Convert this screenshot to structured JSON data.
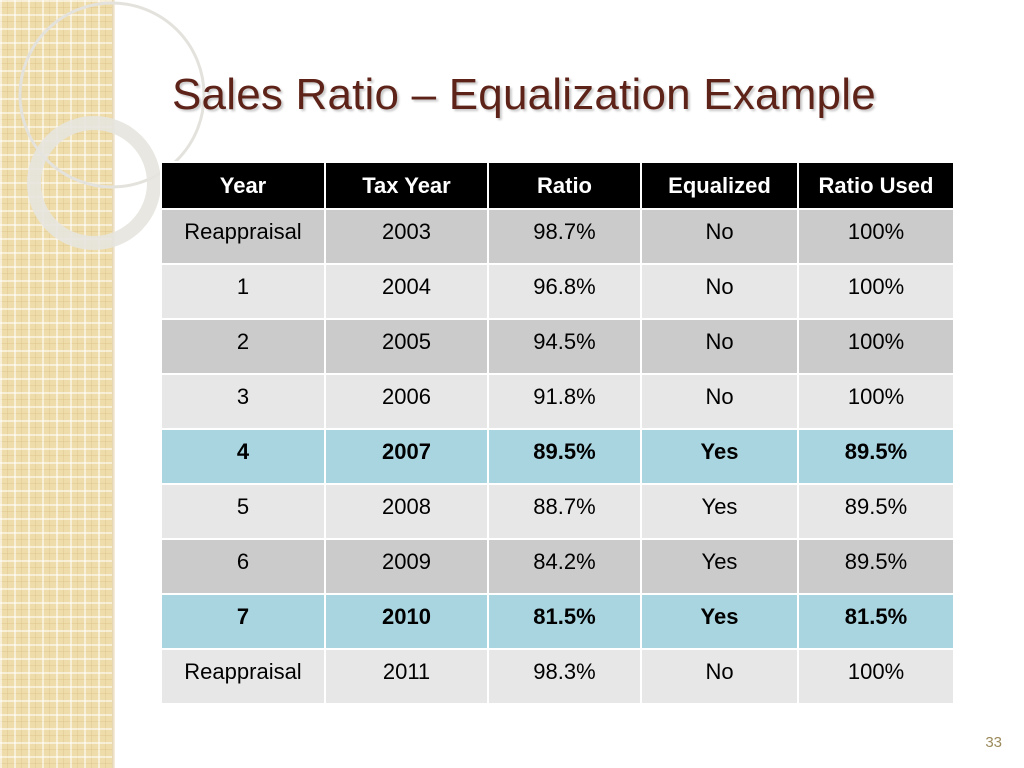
{
  "slide": {
    "title": "Sales Ratio – Equalization Example",
    "page_number": "33"
  },
  "table": {
    "headers": [
      "Year",
      "Tax Year",
      "Ratio",
      "Equalized",
      "Ratio Used"
    ],
    "rows": [
      {
        "cells": [
          "Reappraisal",
          "2003",
          "98.7%",
          "No",
          "100%"
        ],
        "highlight": false
      },
      {
        "cells": [
          "1",
          "2004",
          "96.8%",
          "No",
          "100%"
        ],
        "highlight": false
      },
      {
        "cells": [
          "2",
          "2005",
          "94.5%",
          "No",
          "100%"
        ],
        "highlight": false
      },
      {
        "cells": [
          "3",
          "2006",
          "91.8%",
          "No",
          "100%"
        ],
        "highlight": false
      },
      {
        "cells": [
          "4",
          "2007",
          "89.5%",
          "Yes",
          "89.5%"
        ],
        "highlight": true
      },
      {
        "cells": [
          "5",
          "2008",
          "88.7%",
          "Yes",
          "89.5%"
        ],
        "highlight": false
      },
      {
        "cells": [
          "6",
          "2009",
          "84.2%",
          "Yes",
          "89.5%"
        ],
        "highlight": false
      },
      {
        "cells": [
          "7",
          "2010",
          "81.5%",
          "Yes",
          "81.5%"
        ],
        "highlight": true
      },
      {
        "cells": [
          "Reappraisal",
          "2011",
          "98.3%",
          "No",
          "100%"
        ],
        "highlight": false
      }
    ]
  },
  "colors": {
    "title": "#5e2318",
    "header_bg": "#000000",
    "row_dark": "#cbcbcb",
    "row_light": "#e7e7e7",
    "highlight": "#a9d5e1",
    "strip": "#efdcab"
  }
}
